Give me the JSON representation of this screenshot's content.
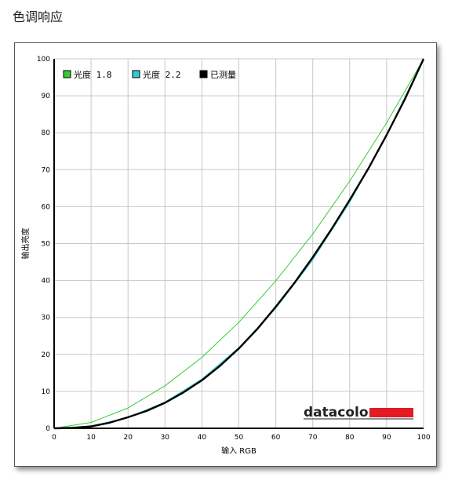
{
  "page": {
    "title": "色调响应"
  },
  "chart_data": {
    "type": "line",
    "title": "",
    "xlabel": "输入 RGB",
    "ylabel": "输出亮度",
    "xlim": [
      0,
      100
    ],
    "ylim": [
      0,
      100
    ],
    "x_ticks": [
      0,
      10,
      20,
      30,
      40,
      50,
      60,
      70,
      80,
      90,
      100
    ],
    "y_ticks": [
      0,
      10,
      20,
      30,
      40,
      50,
      60,
      70,
      80,
      90,
      100
    ],
    "grid": true,
    "legend_position": "top-left",
    "series": [
      {
        "name": "光度 1.8",
        "color": "#33cc33",
        "x": [
          0,
          10,
          20,
          30,
          40,
          50,
          60,
          70,
          80,
          90,
          100
        ],
        "y": [
          0,
          1.6,
          5.5,
          11.5,
          19.2,
          28.7,
          39.9,
          52.6,
          66.9,
          82.7,
          100
        ]
      },
      {
        "name": "光度 2.2",
        "color": "#33cccc",
        "x": [
          0,
          10,
          20,
          30,
          40,
          50,
          60,
          70,
          80,
          90,
          100
        ],
        "y": [
          0,
          0.6,
          2.9,
          7.1,
          13.3,
          21.8,
          32.5,
          45.6,
          61.2,
          79.3,
          100
        ]
      },
      {
        "name": "已测量",
        "color": "#000000",
        "x": [
          0,
          5,
          10,
          15,
          20,
          25,
          30,
          35,
          40,
          45,
          50,
          55,
          60,
          65,
          70,
          75,
          80,
          85,
          90,
          95,
          100
        ],
        "y": [
          0,
          0.1,
          0.5,
          1.5,
          3.0,
          4.7,
          6.9,
          9.7,
          13.0,
          17.0,
          21.6,
          26.9,
          32.9,
          39.3,
          46.3,
          53.8,
          61.8,
          70.2,
          79.4,
          89.2,
          100
        ]
      }
    ]
  },
  "logo": {
    "text": "datacolor",
    "bar_color": "#e31b23"
  }
}
